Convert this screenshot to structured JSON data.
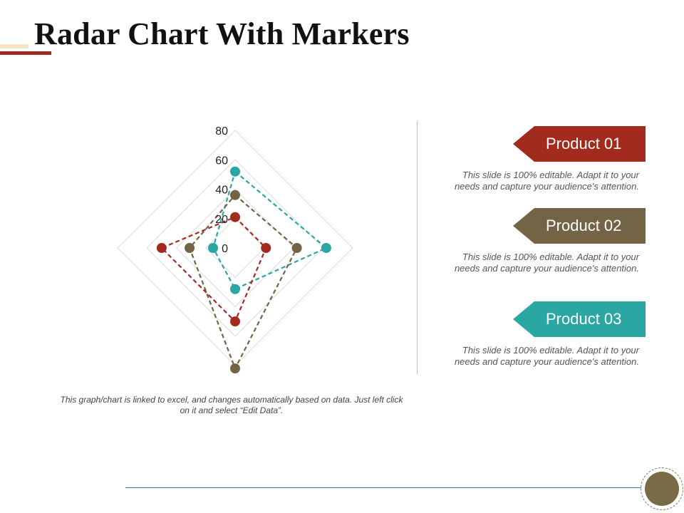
{
  "title": "Radar Chart With Markers",
  "chart_data": {
    "type": "radar",
    "categories": [
      "",
      "",
      "",
      ""
    ],
    "rlim": [
      0,
      80
    ],
    "r_ticks": [
      "0",
      "20",
      "40",
      "60",
      "80"
    ],
    "grid": true,
    "series": [
      {
        "color": "#2aa6a3",
        "values": [
          52,
          62,
          28,
          15
        ]
      },
      {
        "color": "#736446",
        "values": [
          36,
          42,
          82,
          31
        ]
      },
      {
        "color": "#a32b1e",
        "values": [
          21,
          21,
          50,
          50
        ]
      }
    ]
  },
  "footnote": "This graph/chart is linked to excel, and changes automatically based on data. Just left click on it and select “Edit Data”.",
  "products": [
    {
      "label": "Product 01",
      "color": "#a32b1e",
      "description": "This slide is 100% editable. Adapt it to your needs and capture your audience's attention."
    },
    {
      "label": "Product 02",
      "color": "#736446",
      "description": "This slide is 100% editable. Adapt it to your needs and capture your audience's attention."
    },
    {
      "label": "Product 03",
      "color": "#2aa6a3",
      "description": "This slide is 100% editable. Adapt it to your needs and capture your audience's attention."
    }
  ]
}
